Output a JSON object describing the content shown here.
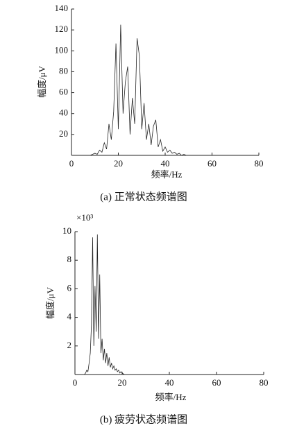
{
  "chart_data": [
    {
      "type": "line",
      "title": "(a) 正常状态频谱图",
      "x_label": "频率/Hz",
      "y_label": "幅度/μV",
      "x": [
        8,
        9,
        10,
        11,
        12,
        13,
        14,
        15,
        16,
        17,
        18,
        19,
        20,
        21,
        22,
        23,
        24,
        25,
        26,
        27,
        28,
        29,
        30,
        31,
        32,
        33,
        34,
        35,
        36,
        37,
        38,
        39,
        40,
        41,
        42,
        43,
        44,
        45,
        46,
        47,
        48,
        49,
        50
      ],
      "values": [
        0,
        1,
        2,
        1,
        5,
        3,
        12,
        6,
        30,
        15,
        42,
        107,
        25,
        125,
        40,
        70,
        85,
        20,
        55,
        30,
        112,
        95,
        25,
        50,
        15,
        30,
        10,
        28,
        34,
        8,
        15,
        4,
        8,
        3,
        5,
        2,
        3,
        1,
        2,
        0,
        1,
        0,
        0
      ],
      "color": "#222222",
      "xlim": [
        0,
        80
      ],
      "xticks": [
        0,
        20,
        40,
        60,
        80
      ],
      "ylim": [
        0,
        140
      ],
      "yticks": [
        20,
        40,
        60,
        80,
        100,
        120,
        140
      ]
    },
    {
      "type": "line",
      "title": "(b) 疲劳状态频谱图",
      "x_label": "频率/Hz",
      "y_label": "幅度/μV",
      "y_multiplier": "×10³",
      "x": [
        4,
        4.5,
        5,
        5.5,
        6,
        6.5,
        7,
        7.5,
        8,
        8.5,
        9,
        9.5,
        10,
        10.5,
        11,
        11.5,
        12,
        12.5,
        13,
        13.5,
        14,
        14.5,
        15,
        15.5,
        16,
        16.5,
        17,
        17.5,
        18,
        18.5,
        19,
        19.5,
        20,
        20.5,
        21,
        21.5,
        22
      ],
      "values": [
        0,
        0.1,
        0.3,
        0.2,
        0.8,
        1.5,
        3.5,
        9.6,
        2,
        6.2,
        3,
        9.8,
        2.5,
        7,
        1.5,
        2.5,
        1,
        1.8,
        0.8,
        1.5,
        0.6,
        1.2,
        0.5,
        0.8,
        0.4,
        0.6,
        0.3,
        0.4,
        0.2,
        0.3,
        0.1,
        0.2,
        0.1,
        0.05,
        0,
        0,
        0
      ],
      "color": "#222222",
      "xlim": [
        0,
        80
      ],
      "xticks": [
        0,
        20,
        40,
        60,
        80
      ],
      "ylim": [
        0,
        10
      ],
      "yticks": [
        2,
        4,
        6,
        8,
        10
      ]
    }
  ]
}
